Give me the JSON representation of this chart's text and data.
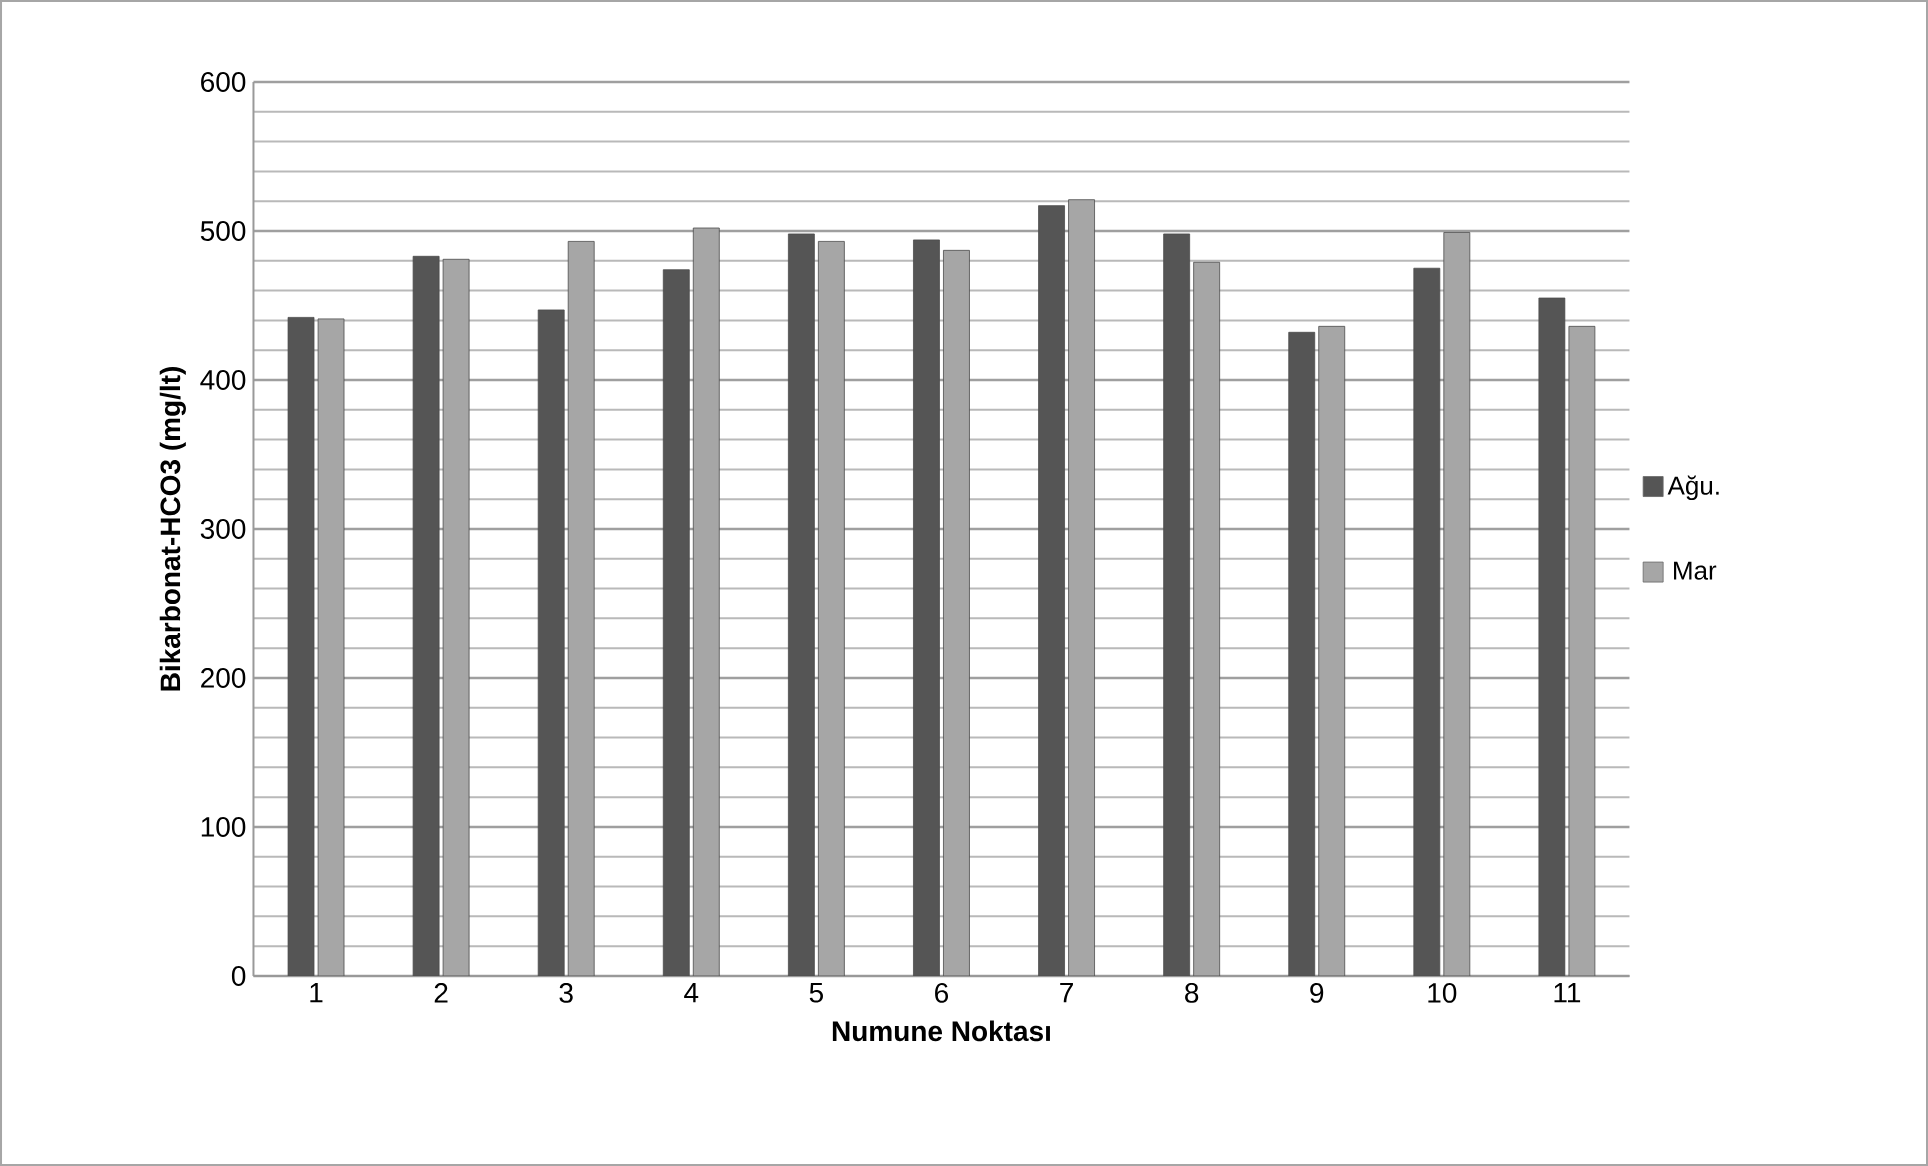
{
  "chart_data": {
    "type": "bar",
    "xlabel": "Numune Noktası",
    "ylabel": "Bikarbonat-HCO3 (mg/lt)",
    "categories": [
      "1",
      "2",
      "3",
      "4",
      "5",
      "6",
      "7",
      "8",
      "9",
      "10",
      "11"
    ],
    "series": [
      {
        "name": "Ağu.",
        "color": "#555555",
        "values": [
          442,
          483,
          447,
          474,
          498,
          494,
          517,
          498,
          432,
          475,
          455
        ]
      },
      {
        "name": "Mar",
        "color": "#a6a6a6",
        "values": [
          441,
          481,
          493,
          502,
          493,
          487,
          521,
          479,
          436,
          499,
          436
        ]
      }
    ],
    "ylim": [
      0,
      600
    ],
    "yticks": [
      0,
      100,
      200,
      300,
      400,
      500,
      600
    ],
    "grid": "y",
    "legend": "right"
  }
}
